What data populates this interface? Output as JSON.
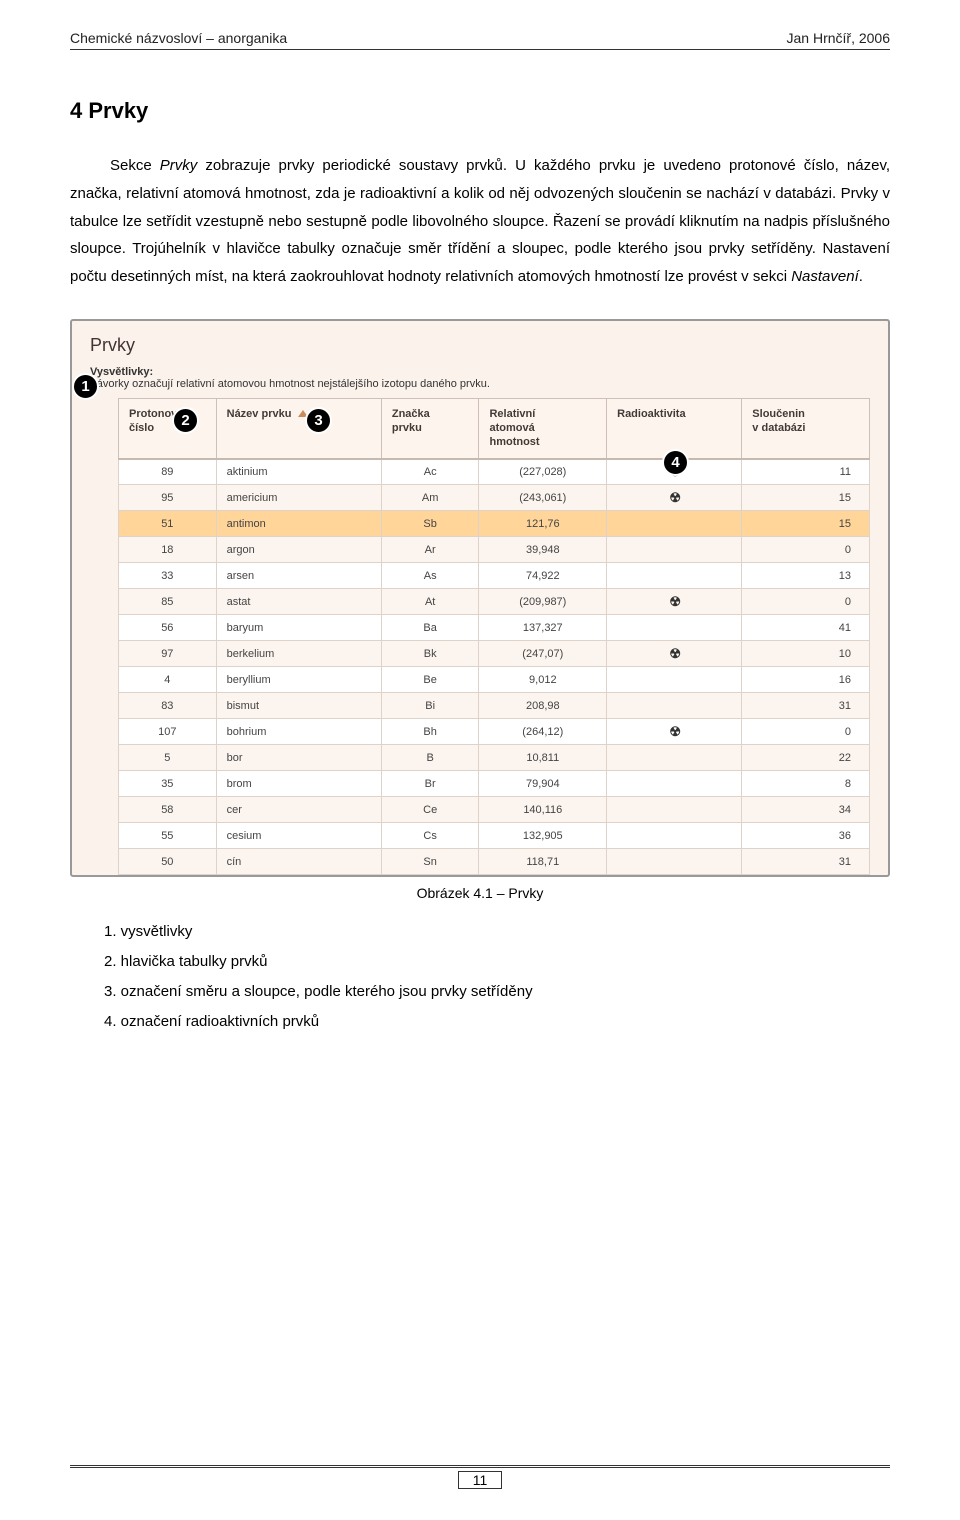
{
  "header": {
    "left": "Chemické názvosloví – anorganika",
    "right": "Jan Hrnčíř, 2006"
  },
  "section_title": "4  Prvky",
  "paragraph": {
    "s1": "Sekce ",
    "s2": "Prvky",
    "s3": " zobrazuje prvky periodické soustavy prvků. U každého prvku je uvedeno protonové číslo, název, značka, relativní atomová hmotnost, zda je radioaktivní a kolik od něj odvozených sloučenin se nachází v databázi. Prvky v tabulce lze setřídit vzestupně nebo sestupně podle libovolného sloupce. Řazení se provádí kliknutím na nadpis příslušného sloupce. Trojúhelník v hlavičce tabulky označuje směr třídění a sloupec, podle kterého jsou prvky setříděny. Nastavení počtu desetinných míst, na která zaokrouhlovat hodnoty relativních atomových hmotností lze provést v sekci ",
    "s4": "Nastavení",
    "s5": "."
  },
  "screenshot": {
    "title": "Prvky",
    "subtitle_bold": "Vysvětlivky:",
    "subtitle_text": "Závorky označují relativní atomovou hmotnost nejstálejšího izotopu daného prvku.",
    "cols": {
      "c1a": "Protonové",
      "c1b": "číslo",
      "c2": "Název prvku",
      "c3a": "Značka",
      "c3b": "prvku",
      "c4a": "Relativní",
      "c4b": "atomová",
      "c4c": "hmotnost",
      "c5": "Radioaktivita",
      "c6a": "Sloučenin",
      "c6b": "v databázi"
    },
    "rows": [
      {
        "pn": "89",
        "name": "aktinium",
        "zn": "Ac",
        "rh": "(227,028)",
        "ra": true,
        "db": "11",
        "hl": false
      },
      {
        "pn": "95",
        "name": "americium",
        "zn": "Am",
        "rh": "(243,061)",
        "ra": true,
        "db": "15",
        "hl": false
      },
      {
        "pn": "51",
        "name": "antimon",
        "zn": "Sb",
        "rh": "121,76",
        "ra": false,
        "db": "15",
        "hl": true
      },
      {
        "pn": "18",
        "name": "argon",
        "zn": "Ar",
        "rh": "39,948",
        "ra": false,
        "db": "0",
        "hl": false
      },
      {
        "pn": "33",
        "name": "arsen",
        "zn": "As",
        "rh": "74,922",
        "ra": false,
        "db": "13",
        "hl": false
      },
      {
        "pn": "85",
        "name": "astat",
        "zn": "At",
        "rh": "(209,987)",
        "ra": true,
        "db": "0",
        "hl": false
      },
      {
        "pn": "56",
        "name": "baryum",
        "zn": "Ba",
        "rh": "137,327",
        "ra": false,
        "db": "41",
        "hl": false
      },
      {
        "pn": "97",
        "name": "berkelium",
        "zn": "Bk",
        "rh": "(247,07)",
        "ra": true,
        "db": "10",
        "hl": false
      },
      {
        "pn": "4",
        "name": "beryllium",
        "zn": "Be",
        "rh": "9,012",
        "ra": false,
        "db": "16",
        "hl": false
      },
      {
        "pn": "83",
        "name": "bismut",
        "zn": "Bi",
        "rh": "208,98",
        "ra": false,
        "db": "31",
        "hl": false
      },
      {
        "pn": "107",
        "name": "bohrium",
        "zn": "Bh",
        "rh": "(264,12)",
        "ra": true,
        "db": "0",
        "hl": false
      },
      {
        "pn": "5",
        "name": "bor",
        "zn": "B",
        "rh": "10,811",
        "ra": false,
        "db": "22",
        "hl": false
      },
      {
        "pn": "35",
        "name": "brom",
        "zn": "Br",
        "rh": "79,904",
        "ra": false,
        "db": "8",
        "hl": false
      },
      {
        "pn": "58",
        "name": "cer",
        "zn": "Ce",
        "rh": "140,116",
        "ra": false,
        "db": "34",
        "hl": false
      },
      {
        "pn": "55",
        "name": "cesium",
        "zn": "Cs",
        "rh": "132,905",
        "ra": false,
        "db": "36",
        "hl": false
      },
      {
        "pn": "50",
        "name": "cín",
        "zn": "Sn",
        "rh": "118,71",
        "ra": false,
        "db": "31",
        "hl": false
      }
    ]
  },
  "caption": "Obrázek 4.1 – Prvky",
  "legend": {
    "l1": "1. vysvětlivky",
    "l2": "2. hlavička tabulky prvků",
    "l3": "3. označení směru a sloupce, podle kterého jsou prvky setříděny",
    "l4": "4. označení radioaktivních prvků"
  },
  "callouts": {
    "c1": "1",
    "c2": "2",
    "c3": "3",
    "c4": "4"
  },
  "pagenum": "11"
}
